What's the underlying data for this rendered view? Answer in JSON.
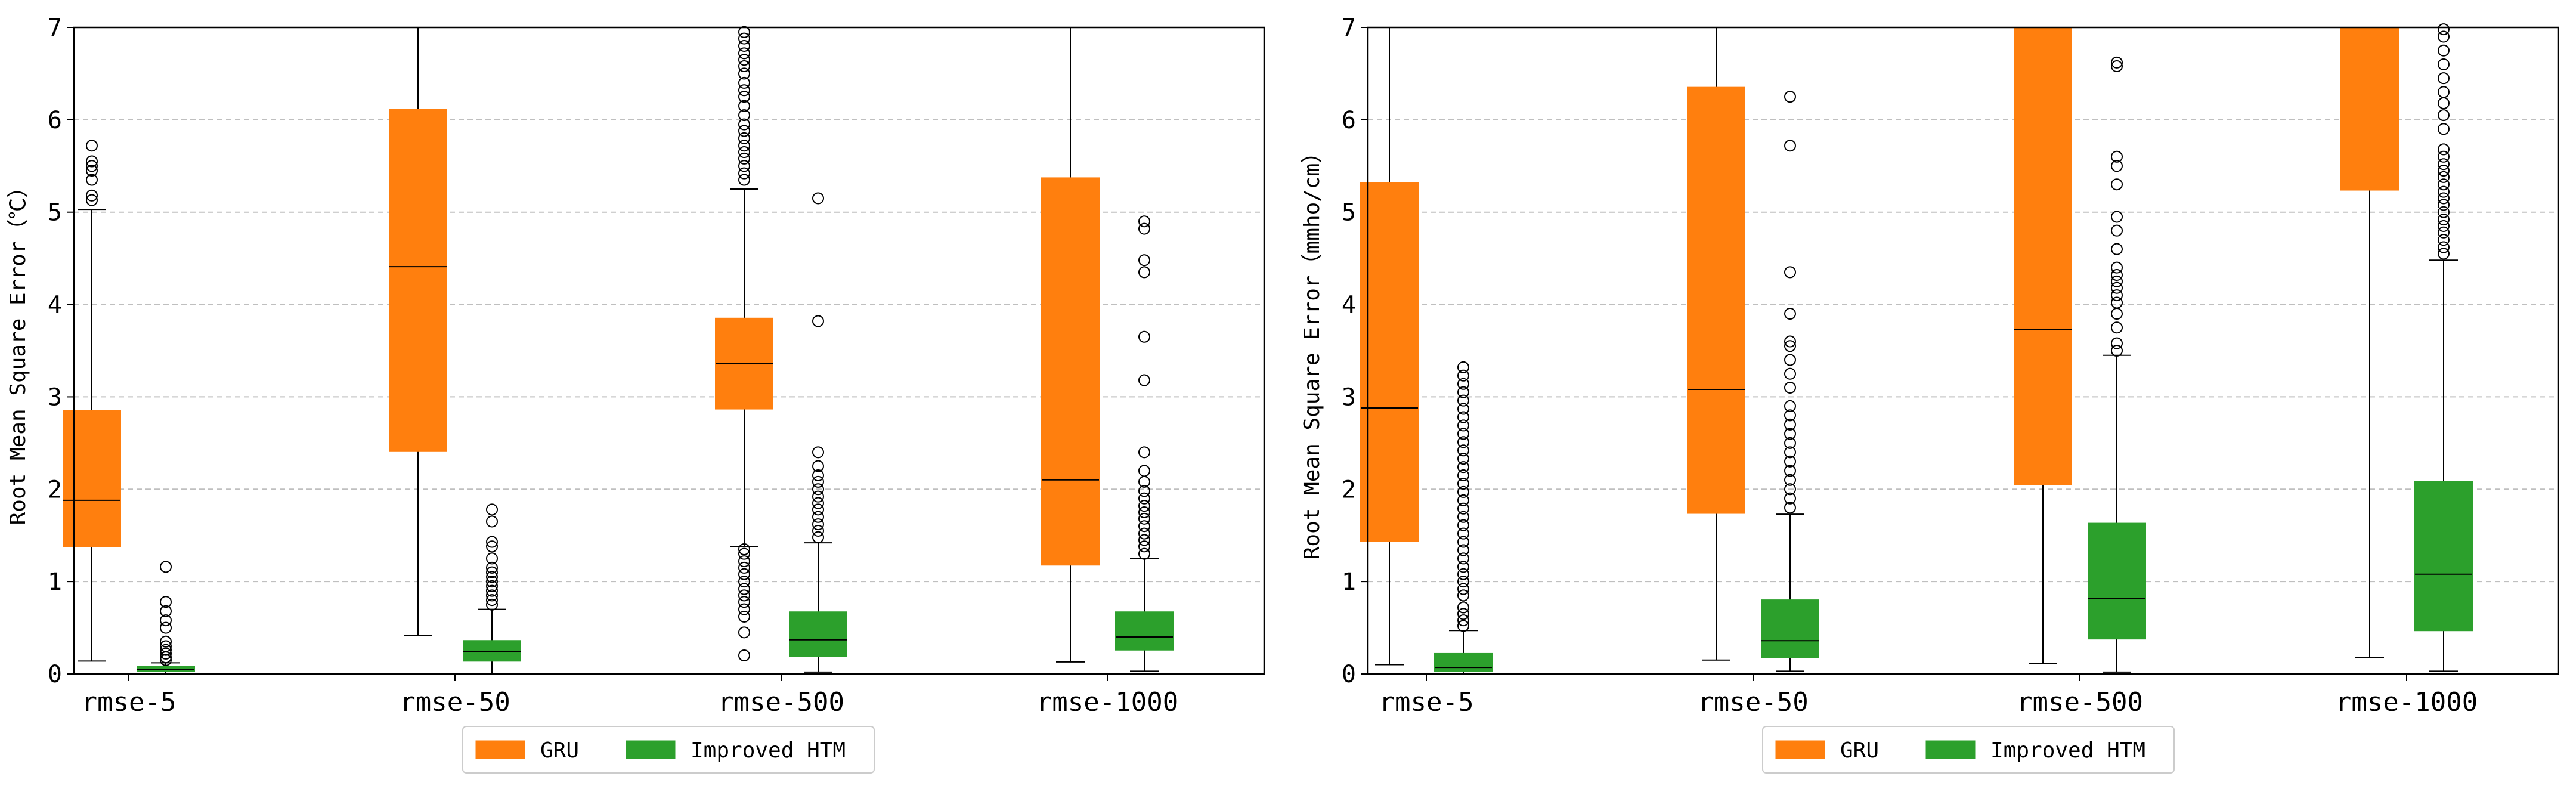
{
  "figure_title": "",
  "legend": {
    "entries": [
      {
        "key": "gru",
        "label": "GRU",
        "color": "#ff7f0e"
      },
      {
        "key": "htm",
        "label": "Improved HTM",
        "color": "#2ca02c"
      }
    ]
  },
  "chart_data": [
    {
      "type": "box",
      "title": "",
      "xlabel": "",
      "ylabel": "Root Mean Square Error（℃）",
      "ylim": [
        0,
        7
      ],
      "yticks": [
        0,
        1,
        2,
        3,
        4,
        5,
        6,
        7
      ],
      "ytick_labels": [
        "0",
        "1",
        "2",
        "3",
        "4",
        "5",
        "6",
        "7"
      ],
      "grid": "horizontal-dashed",
      "categories": [
        "rmse-5",
        "rmse-50",
        "rmse-500",
        "rmse-1000"
      ],
      "series": [
        {
          "name": "GRU",
          "boxes": [
            {
              "whislo": 0.14,
              "q1": 1.38,
              "med": 1.88,
              "q3": 2.85,
              "whishi": 5.03,
              "fliers": [
                5.13,
                5.18,
                5.35,
                5.45,
                5.5,
                5.55,
                5.72
              ]
            },
            {
              "whislo": 0.42,
              "q1": 2.41,
              "med": 4.41,
              "q3": 6.11,
              "whishi": 7.0,
              "fliers": []
            },
            {
              "whislo": 1.38,
              "q1": 2.87,
              "med": 3.36,
              "q3": 3.85,
              "whishi": 5.25,
              "fliers": [
                0.2,
                0.45,
                0.62,
                0.7,
                0.78,
                0.85,
                0.92,
                1.0,
                1.08,
                1.15,
                1.22,
                1.3,
                1.35,
                5.35,
                5.42,
                5.5,
                5.58,
                5.65,
                5.72,
                5.8,
                5.88,
                5.95,
                6.05,
                6.15,
                6.25,
                6.32,
                6.4,
                6.5,
                6.58,
                6.65,
                6.72,
                6.8,
                6.88,
                6.95
              ]
            },
            {
              "whislo": 0.13,
              "q1": 1.18,
              "med": 2.1,
              "q3": 5.37,
              "whishi": 7.0,
              "fliers": []
            }
          ]
        },
        {
          "name": "Improved HTM",
          "boxes": [
            {
              "whislo": 0.0,
              "q1": 0.03,
              "med": 0.05,
              "q3": 0.08,
              "whishi": 0.12,
              "fliers": [
                0.15,
                0.18,
                0.22,
                0.26,
                0.3,
                0.35,
                0.5,
                0.58,
                0.68,
                0.78,
                1.16
              ]
            },
            {
              "whislo": 0.0,
              "q1": 0.14,
              "med": 0.24,
              "q3": 0.36,
              "whishi": 0.7,
              "fliers": [
                0.75,
                0.8,
                0.85,
                0.9,
                0.95,
                1.0,
                1.05,
                1.1,
                1.15,
                1.25,
                1.38,
                1.43,
                1.65,
                1.78
              ]
            },
            {
              "whislo": 0.02,
              "q1": 0.19,
              "med": 0.37,
              "q3": 0.67,
              "whishi": 1.42,
              "fliers": [
                1.48,
                1.55,
                1.62,
                1.7,
                1.78,
                1.85,
                1.92,
                2.0,
                2.08,
                2.15,
                2.25,
                2.4,
                3.82,
                5.15
              ]
            },
            {
              "whislo": 0.03,
              "q1": 0.26,
              "med": 0.4,
              "q3": 0.67,
              "whishi": 1.25,
              "fliers": [
                1.3,
                1.38,
                1.45,
                1.52,
                1.6,
                1.68,
                1.75,
                1.82,
                1.9,
                1.98,
                2.08,
                2.2,
                2.4,
                3.18,
                3.65,
                4.35,
                4.48,
                4.82,
                4.9
              ]
            }
          ]
        }
      ]
    },
    {
      "type": "box",
      "title": "",
      "xlabel": "",
      "ylabel": "Root Mean Square Error（mmho/cm）",
      "ylim": [
        0,
        7
      ],
      "yticks": [
        0,
        1,
        2,
        3,
        4,
        5,
        6,
        7
      ],
      "ytick_labels": [
        "0",
        "1",
        "2",
        "3",
        "4",
        "5",
        "6",
        "7"
      ],
      "grid": "horizontal-dashed",
      "categories": [
        "rmse-5",
        "rmse-50",
        "rmse-500",
        "rmse-1000"
      ],
      "series": [
        {
          "name": "GRU",
          "boxes": [
            {
              "whislo": 0.1,
              "q1": 1.44,
              "med": 2.88,
              "q3": 5.32,
              "whishi": 7.0,
              "fliers": []
            },
            {
              "whislo": 0.15,
              "q1": 1.74,
              "med": 3.08,
              "q3": 6.35,
              "whishi": 7.0,
              "fliers": []
            },
            {
              "whislo": 0.11,
              "q1": 2.05,
              "med": 3.73,
              "q3": 7.0,
              "whishi": 7.0,
              "fliers": []
            },
            {
              "whislo": 0.18,
              "q1": 5.24,
              "med": 7.0,
              "q3": 7.0,
              "whishi": 7.0,
              "fliers": []
            }
          ]
        },
        {
          "name": "Improved HTM",
          "boxes": [
            {
              "whislo": 0.0,
              "q1": 0.03,
              "med": 0.07,
              "q3": 0.22,
              "whishi": 0.47,
              "fliers": [
                0.52,
                0.58,
                0.65,
                0.72,
                0.85,
                0.92,
                1.0,
                1.08,
                1.16,
                1.25,
                1.34,
                1.43,
                1.52,
                1.61,
                1.7,
                1.79,
                1.88,
                1.97,
                2.06,
                2.15,
                2.24,
                2.33,
                2.42,
                2.51,
                2.6,
                2.69,
                2.78,
                2.87,
                2.96,
                3.05,
                3.14,
                3.23,
                3.32
              ]
            },
            {
              "whislo": 0.03,
              "q1": 0.18,
              "med": 0.36,
              "q3": 0.8,
              "whishi": 1.73,
              "fliers": [
                1.8,
                1.9,
                2.0,
                2.1,
                2.2,
                2.3,
                2.4,
                2.5,
                2.6,
                2.7,
                2.8,
                2.9,
                3.1,
                3.25,
                3.4,
                3.55,
                3.6,
                3.9,
                4.35,
                5.72,
                6.25
              ]
            },
            {
              "whislo": 0.02,
              "q1": 0.38,
              "med": 0.82,
              "q3": 1.63,
              "whishi": 3.45,
              "fliers": [
                3.5,
                3.58,
                3.75,
                3.9,
                4.02,
                4.1,
                4.18,
                4.25,
                4.32,
                4.4,
                4.6,
                4.8,
                4.95,
                5.3,
                5.5,
                5.6,
                6.58,
                6.62
              ]
            },
            {
              "whislo": 0.03,
              "q1": 0.47,
              "med": 1.08,
              "q3": 2.08,
              "whishi": 4.48,
              "fliers": [
                4.55,
                4.62,
                4.7,
                4.78,
                4.85,
                4.92,
                5.0,
                5.08,
                5.15,
                5.22,
                5.3,
                5.38,
                5.45,
                5.52,
                5.6,
                5.68,
                5.9,
                6.05,
                6.18,
                6.3,
                6.45,
                6.6,
                6.75,
                6.9,
                6.98
              ]
            }
          ]
        }
      ]
    }
  ]
}
